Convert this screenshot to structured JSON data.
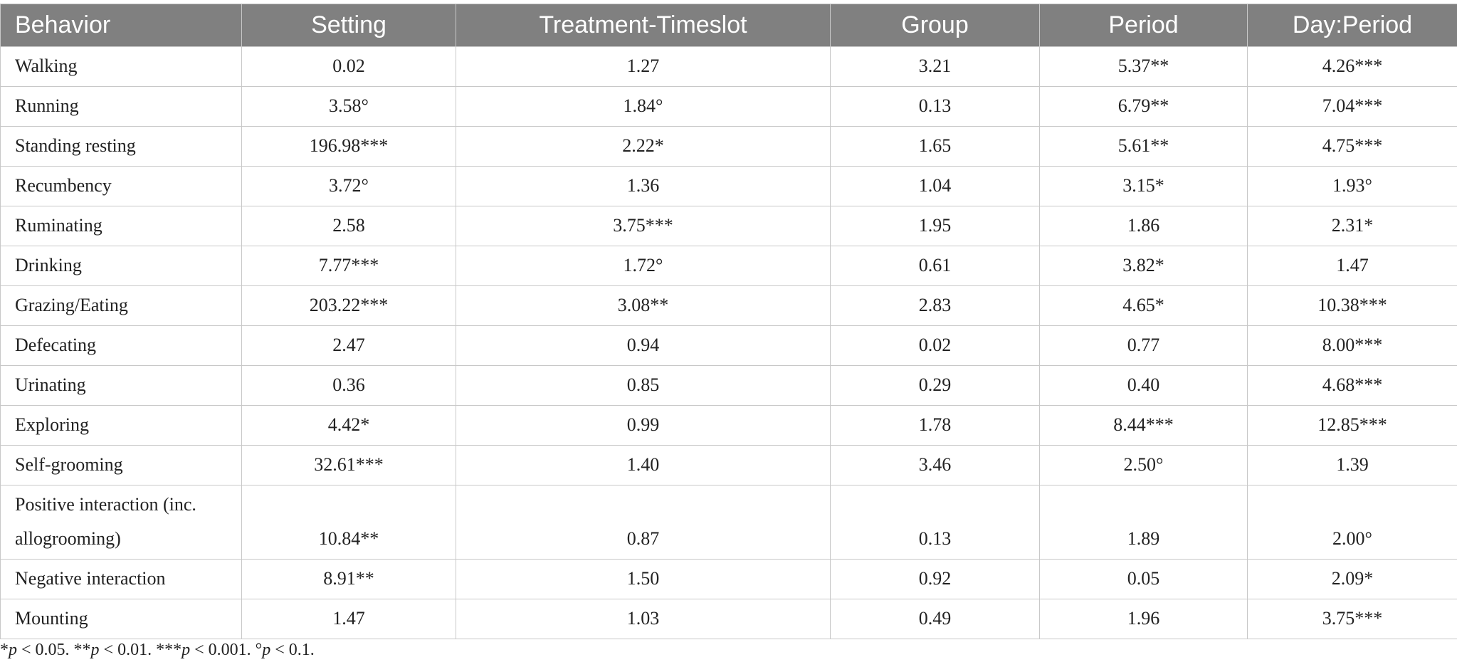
{
  "table": {
    "header": [
      "Behavior",
      "Setting",
      "Treatment-Timeslot",
      "Group",
      "Period",
      "Day:Period"
    ],
    "rows": [
      [
        "Walking",
        "0.02",
        "1.27",
        "3.21",
        "5.37**",
        "4.26***"
      ],
      [
        "Running",
        "3.58°",
        "1.84°",
        "0.13",
        "6.79**",
        "7.04***"
      ],
      [
        "Standing resting",
        "196.98***",
        "2.22*",
        "1.65",
        "5.61**",
        "4.75***"
      ],
      [
        "Recumbency",
        "3.72°",
        "1.36",
        "1.04",
        "3.15*",
        "1.93°"
      ],
      [
        "Ruminating",
        "2.58",
        "3.75***",
        "1.95",
        "1.86",
        "2.31*"
      ],
      [
        "Drinking",
        "7.77***",
        "1.72°",
        "0.61",
        "3.82*",
        "1.47"
      ],
      [
        "Grazing/Eating",
        "203.22***",
        "3.08**",
        "2.83",
        "4.65*",
        "10.38***"
      ],
      [
        "Defecating",
        "2.47",
        "0.94",
        "0.02",
        "0.77",
        "8.00***"
      ],
      [
        "Urinating",
        "0.36",
        "0.85",
        "0.29",
        "0.40",
        "4.68***"
      ],
      [
        "Exploring",
        "4.42*",
        "0.99",
        "1.78",
        "8.44***",
        "12.85***"
      ],
      [
        "Self-grooming",
        "32.61***",
        "1.40",
        "3.46",
        "2.50°",
        "1.39"
      ],
      [
        "Positive interaction (inc. allogrooming)",
        "10.84**",
        "0.87",
        "0.13",
        "1.89",
        "2.00°"
      ],
      [
        "Negative interaction",
        "8.91**",
        "1.50",
        "0.92",
        "0.05",
        "2.09*"
      ],
      [
        "Mounting",
        "1.47",
        "1.03",
        "0.49",
        "1.96",
        "3.75***"
      ]
    ]
  },
  "footnote": [
    "*",
    "p",
    " < 0.05. **",
    "p",
    " < 0.01. ***",
    "p",
    " < 0.001. °",
    "p",
    " < 0.1."
  ]
}
